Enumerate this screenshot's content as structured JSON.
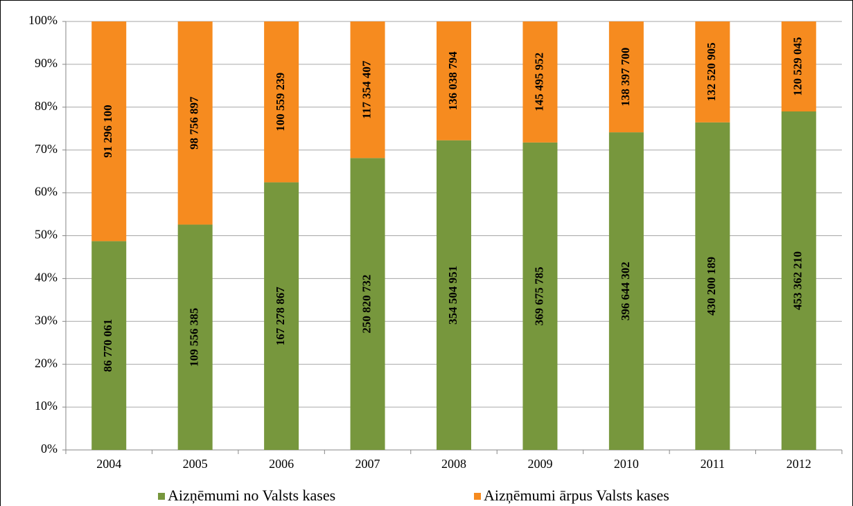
{
  "chart_data": {
    "type": "stacked_percent_bar",
    "categories": [
      "2004",
      "2005",
      "2006",
      "2007",
      "2008",
      "2009",
      "2010",
      "2011",
      "2012"
    ],
    "series": [
      {
        "name": "Aizņēmumi no Valsts kases",
        "color": "#77973d",
        "values": [
          86770061,
          109556385,
          167278867,
          250820732,
          354504951,
          369675785,
          396644302,
          430200189,
          453362210
        ],
        "value_labels": [
          "86 770 061",
          "109 556 385",
          "167 278 867",
          "250 820 732",
          "354 504 951",
          "369 675 785",
          "396 644 302",
          "430 200 189",
          "453 362 210"
        ]
      },
      {
        "name": "Aizņēmumi ārpus Valsts kases",
        "color": "#f68b1f",
        "values": [
          91296100,
          98756897,
          100559239,
          117354407,
          136038794,
          145495952,
          138397700,
          132520905,
          120529045
        ],
        "value_labels": [
          "91 296 100",
          "98 756 897",
          "100 559 239",
          "117 354 407",
          "136 038 794",
          "145 495 952",
          "138 397 700",
          "132 520 905",
          "120 529 045"
        ]
      }
    ],
    "ylim": [
      0,
      100
    ],
    "yticks": [
      {
        "value": 0,
        "label": "0%"
      },
      {
        "value": 10,
        "label": "10%"
      },
      {
        "value": 20,
        "label": "20%"
      },
      {
        "value": 30,
        "label": "30%"
      },
      {
        "value": 40,
        "label": "40%"
      },
      {
        "value": 50,
        "label": "50%"
      },
      {
        "value": 60,
        "label": "60%"
      },
      {
        "value": 70,
        "label": "70%"
      },
      {
        "value": 80,
        "label": "80%"
      },
      {
        "value": 90,
        "label": "90%"
      },
      {
        "value": 100,
        "label": "100%"
      }
    ],
    "grid": true,
    "legend": "bottom"
  }
}
